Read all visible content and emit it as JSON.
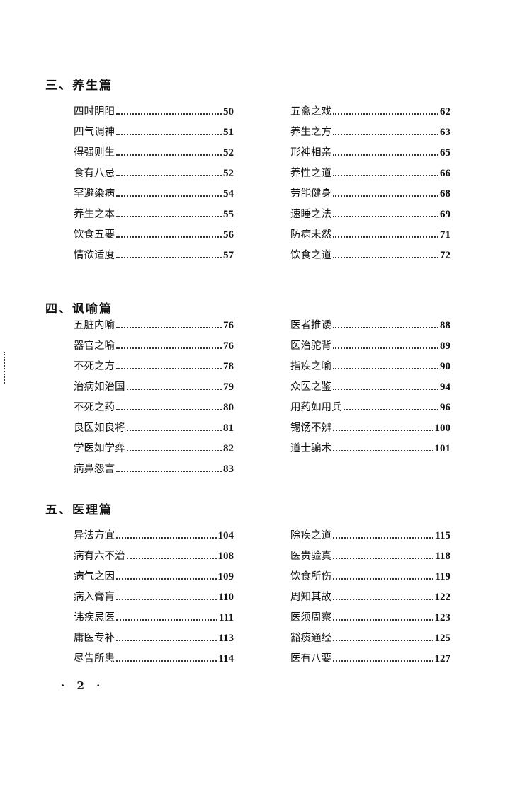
{
  "sections": [
    {
      "title": "三、养生篇",
      "left": [
        {
          "title": "四时阴阳",
          "page": "50"
        },
        {
          "title": "四气调神",
          "page": "51"
        },
        {
          "title": "得强则生",
          "page": "52"
        },
        {
          "title": "食有八忌",
          "page": "52"
        },
        {
          "title": "罕避染病",
          "page": "54"
        },
        {
          "title": "养生之本",
          "page": "55"
        },
        {
          "title": "饮食五要",
          "page": "56"
        },
        {
          "title": "情欲适度",
          "page": "57"
        }
      ],
      "right": [
        {
          "title": "五禽之戏",
          "page": "62"
        },
        {
          "title": "养生之方",
          "page": "63"
        },
        {
          "title": "形神相亲",
          "page": "65"
        },
        {
          "title": "养性之道",
          "page": "66"
        },
        {
          "title": "劳能健身",
          "page": "68"
        },
        {
          "title": "速睡之法",
          "page": "69"
        },
        {
          "title": "防病未然",
          "page": "71"
        },
        {
          "title": "饮食之道",
          "page": "72"
        }
      ]
    },
    {
      "title": "四、讽喻篇",
      "left": [
        {
          "title": "五脏内喻",
          "page": "76"
        },
        {
          "title": "器官之喻",
          "page": "76"
        },
        {
          "title": "不死之方",
          "page": "78"
        },
        {
          "title": "治病如治国",
          "page": "79"
        },
        {
          "title": "不死之药",
          "page": "80"
        },
        {
          "title": "良医如良将",
          "page": "81"
        },
        {
          "title": "学医如学弈",
          "page": "82"
        },
        {
          "title": "病鼻怨言",
          "page": "83"
        }
      ],
      "right": [
        {
          "title": "医者推诿",
          "page": "88"
        },
        {
          "title": "医治驼背",
          "page": "89"
        },
        {
          "title": "指疾之喻",
          "page": "90"
        },
        {
          "title": "众医之鉴",
          "page": "94"
        },
        {
          "title": "用药如用兵",
          "page": "96"
        },
        {
          "title": "锡饧不辨",
          "page": "100"
        },
        {
          "title": "道士骗术",
          "page": "101"
        }
      ]
    },
    {
      "title": "五、医理篇",
      "left": [
        {
          "title": "异法方宜",
          "page": "104"
        },
        {
          "title": "病有六不治",
          "page": "108"
        },
        {
          "title": "病气之因",
          "page": "109"
        },
        {
          "title": "病入膏肓",
          "page": "110"
        },
        {
          "title": "讳疾忌医",
          "page": "111"
        },
        {
          "title": "庸医专补",
          "page": "113"
        },
        {
          "title": "尽告所患",
          "page": "114"
        }
      ],
      "right": [
        {
          "title": "除疾之道",
          "page": "115"
        },
        {
          "title": "医贵验真",
          "page": "118"
        },
        {
          "title": "饮食所伤",
          "page": "119"
        },
        {
          "title": "周知其故",
          "page": "122"
        },
        {
          "title": "医须周察",
          "page": "123"
        },
        {
          "title": "豁痰通经",
          "page": "125"
        },
        {
          "title": "医有八要",
          "page": "127"
        }
      ]
    }
  ],
  "page_number": "· 2 ·"
}
